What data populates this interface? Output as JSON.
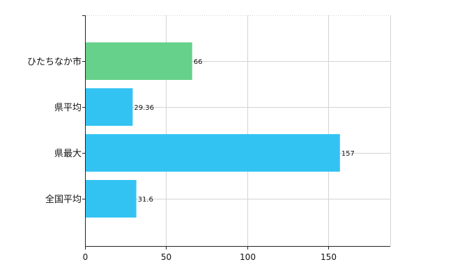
{
  "chart_data": {
    "type": "bar",
    "orientation": "horizontal",
    "categories": [
      "ひたちなか市",
      "県平均",
      "県最大",
      "全国平均"
    ],
    "values": [
      66,
      29.36,
      157,
      31.6
    ],
    "value_labels": [
      "66",
      "29.36",
      "157",
      "31.6"
    ],
    "colors": [
      "#66d18a",
      "#33c3f2",
      "#33c3f2",
      "#33c3f2"
    ],
    "x_ticks": [
      0,
      50,
      100,
      150
    ],
    "x_tick_labels": [
      "0",
      "50",
      "100",
      "150"
    ],
    "xlim": [
      0,
      188
    ],
    "grid": true,
    "grid_color": "#d3d3d3",
    "axis_color": "#222222",
    "title": "",
    "xlabel": "",
    "ylabel": ""
  }
}
